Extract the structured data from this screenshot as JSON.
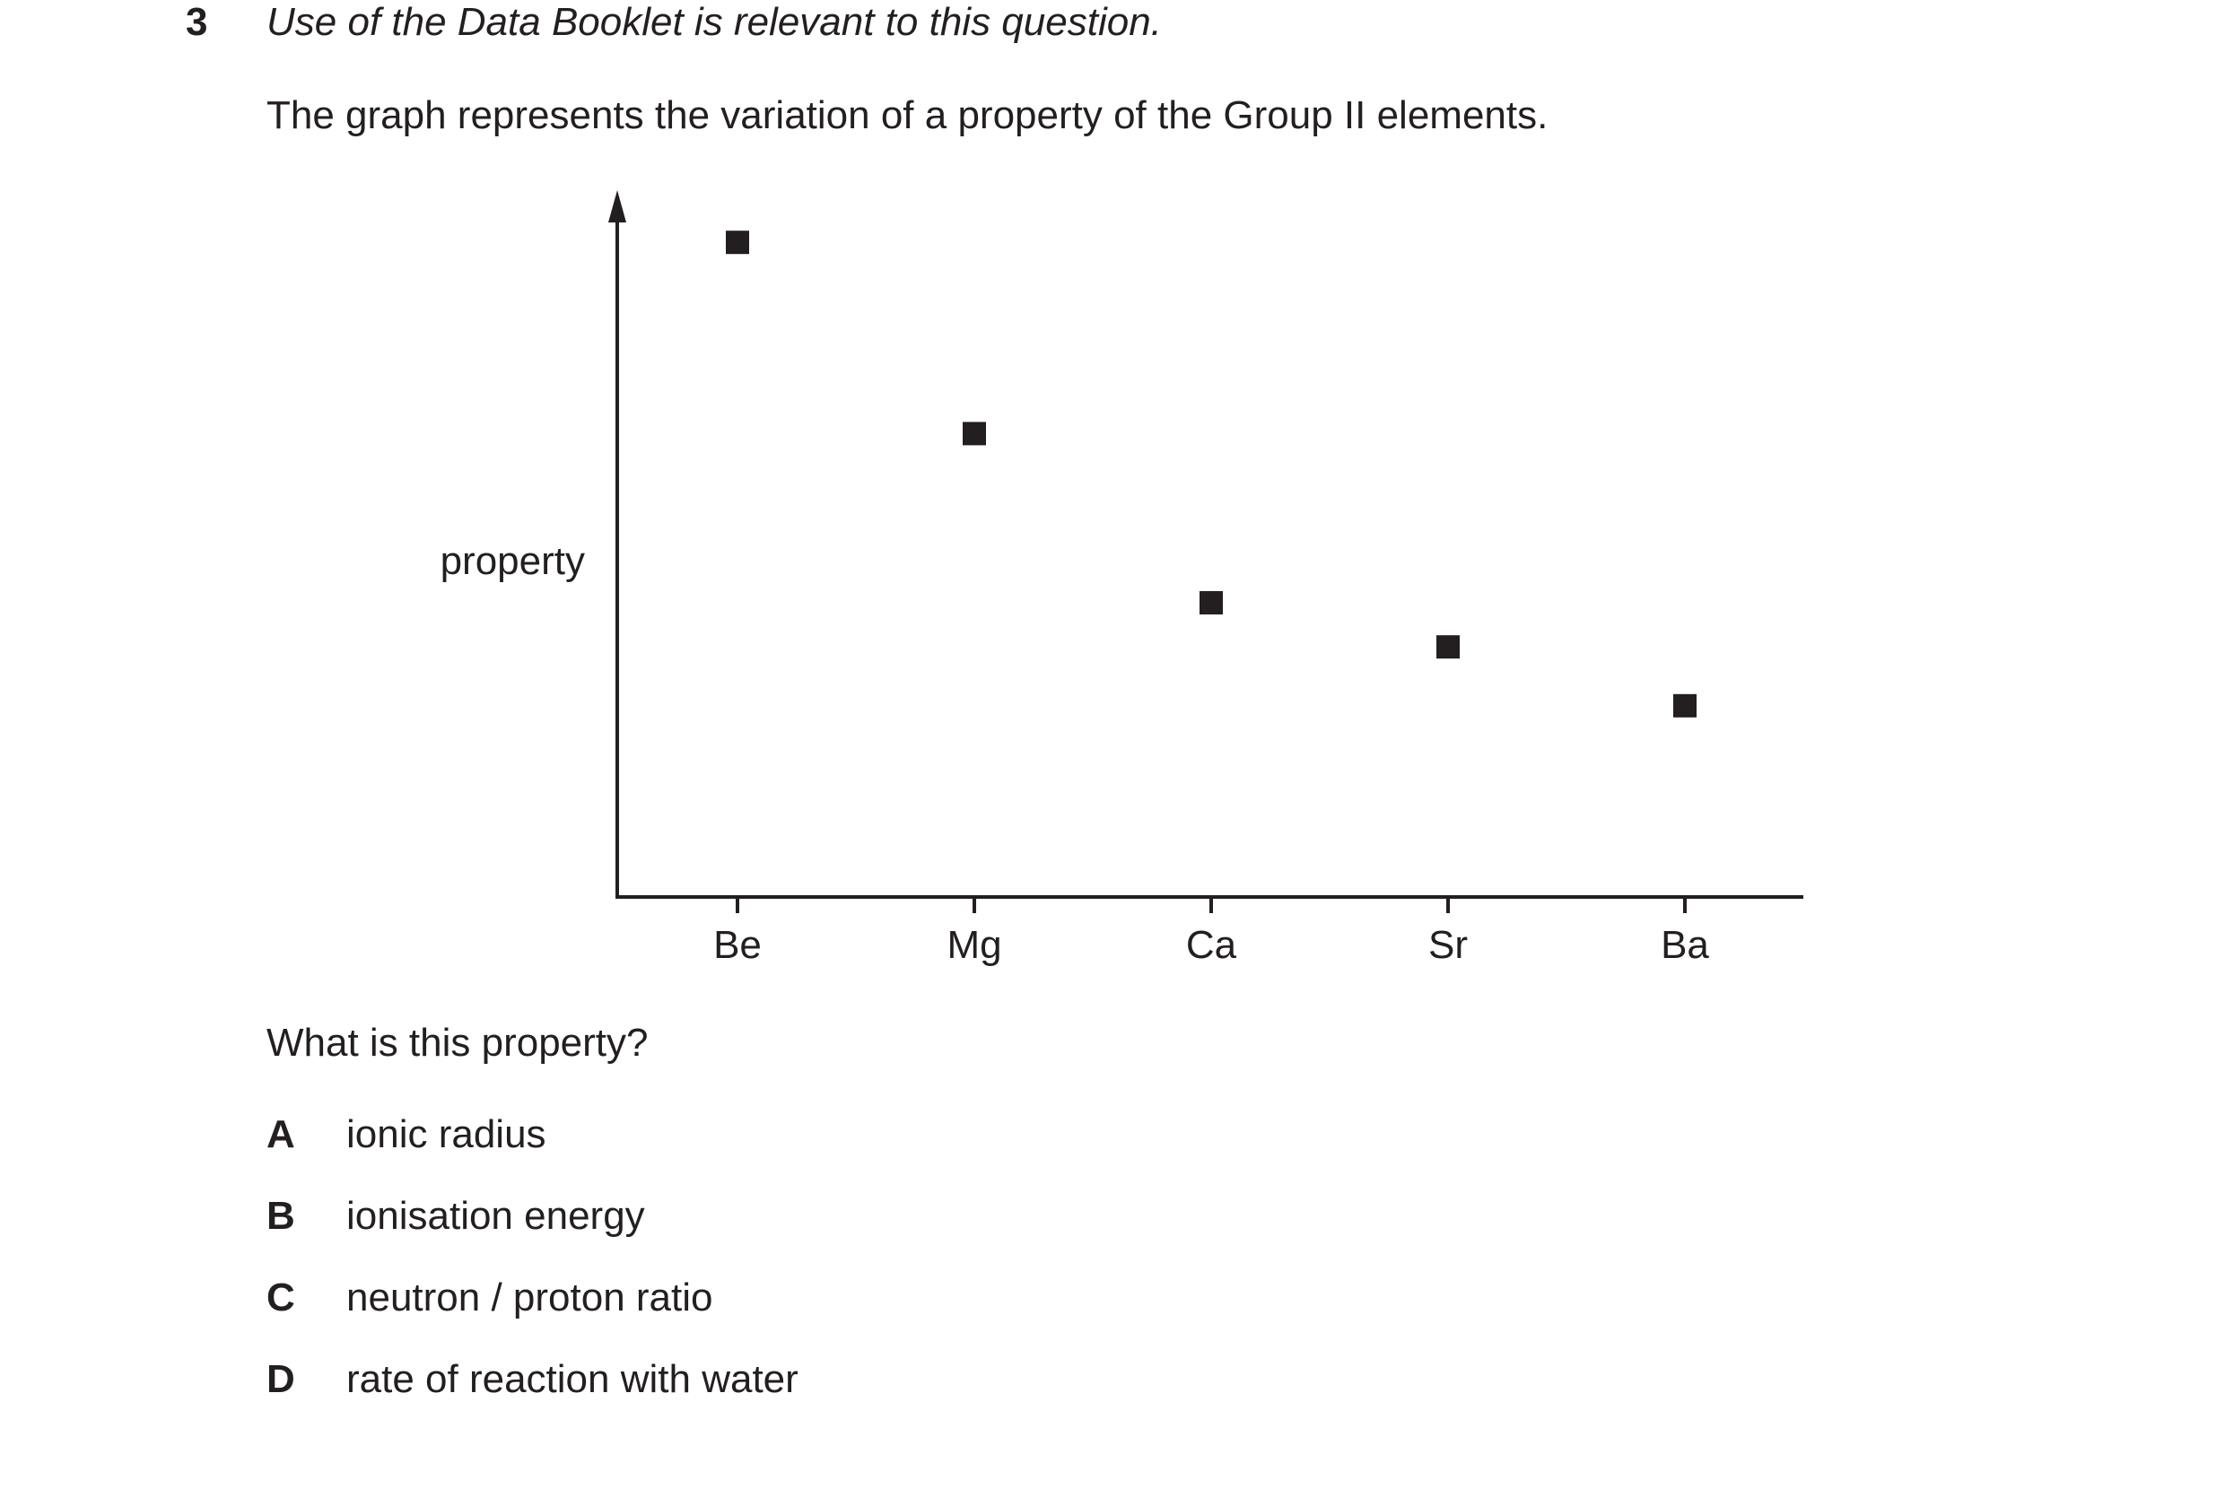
{
  "question": {
    "number": "3",
    "instruction": "Use of the Data Booklet is relevant to this question.",
    "stem": "The graph represents the variation of a property of the Group II elements.",
    "prompt": "What is this property?",
    "options": [
      {
        "letter": "A",
        "text": "ionic radius"
      },
      {
        "letter": "B",
        "text": "ionisation energy"
      },
      {
        "letter": "C",
        "text": "neutron / proton ratio"
      },
      {
        "letter": "D",
        "text": "rate of reaction with water"
      }
    ]
  },
  "chart_data": {
    "type": "scatter",
    "title": "",
    "xlabel": "",
    "ylabel": "property",
    "categories": [
      "Be",
      "Mg",
      "Ca",
      "Sr",
      "Ba"
    ],
    "series": [
      {
        "values": [
          89,
          63,
          40,
          34,
          26
        ]
      }
    ],
    "ylim": [
      0,
      100
    ],
    "y_ticks_labeled": false,
    "grid": false,
    "legend": "none",
    "marker": "square",
    "color": "#231f20"
  }
}
